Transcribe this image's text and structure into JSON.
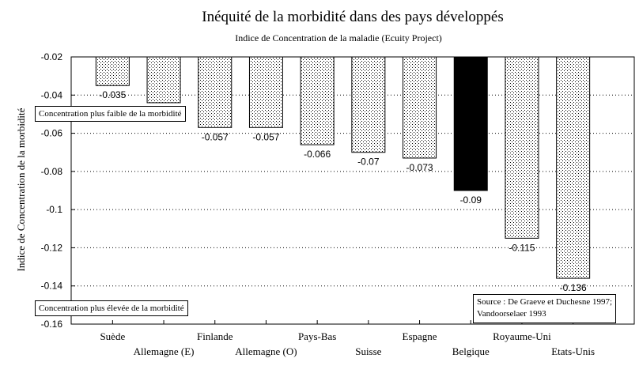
{
  "chart_data": {
    "type": "bar",
    "title": "Inéquité de la morbidité dans  des pays développés",
    "subtitle": "Indice de Concentration de la maladie (Ecuity Project)",
    "ylabel": "Indice de Concentration de la morbidité",
    "xlabel": "",
    "ylim": [
      -0.16,
      -0.02
    ],
    "yticks": [
      "-0.02",
      "-0.04",
      "-0.06",
      "-0.08",
      "-0.1",
      "-0.12",
      "-0.14",
      "-0.16"
    ],
    "categories": [
      "Suède",
      "Allemagne (E)",
      "Finlande",
      "Allemagne (O)",
      "Pays-Bas",
      "Suisse",
      "Espagne",
      "Belgique",
      "Royaume-Uni",
      "Etats-Unis"
    ],
    "values": [
      -0.035,
      -0.044,
      -0.057,
      -0.057,
      -0.066,
      -0.07,
      -0.073,
      -0.09,
      -0.115,
      -0.136
    ],
    "labels": [
      "-0.035",
      "",
      "-0.057",
      "-0.057",
      "-0.066",
      "-0.07",
      "-0.073",
      "-0.09",
      "-0.115",
      "-0.136"
    ],
    "highlighted": "Belgique",
    "grid": true,
    "pattern": "dotted",
    "highlight_color": "#000000"
  },
  "annotations": {
    "lower_concentration": "Concentration plus faible de la morbidité",
    "higher_concentration": "Concentration  plus élevée de  la morbidité",
    "source_line1": "Source : De Graeve et Duchesne 1997;",
    "source_line2": "Vandoorselaer 1993"
  }
}
